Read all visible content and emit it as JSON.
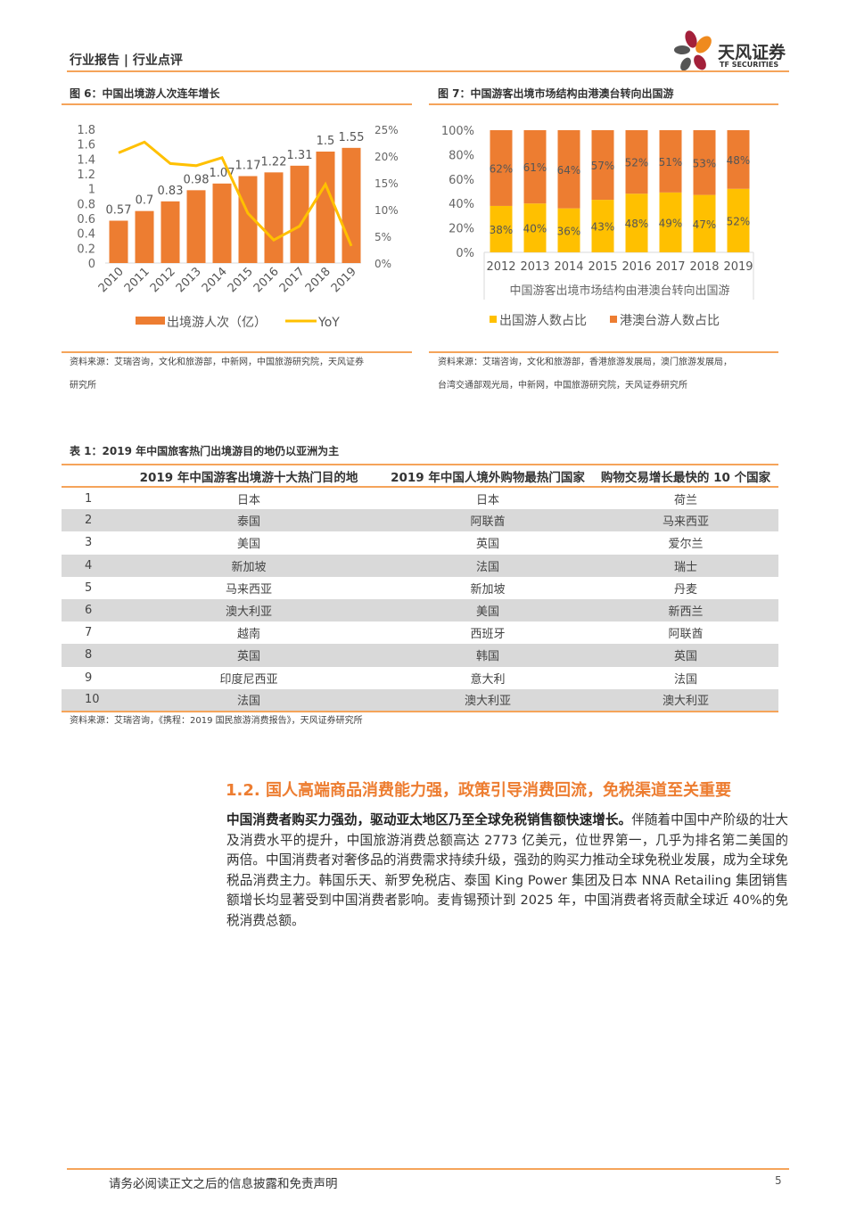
{
  "header": {
    "title": "行业报告 | 行业点评",
    "logo_cn": "天风证券",
    "logo_en": "TF SECURITIES"
  },
  "fig6": {
    "title": "图 6：中国出境游人次连年增长",
    "source": "资料来源：艾瑞咨询，文化和旅游部，中新网，中国旅游研究院，天风证券",
    "source2": "研究所"
  },
  "fig7": {
    "title": "图 7：中国游客出境市场结构由港澳台转向出国游",
    "source": "资料来源：艾瑞咨询，文化和旅游部，香港旅游发展局，澳门旅游发展局，",
    "source2": "台湾交通部观光局，中新网，中国旅游研究院，天风证券研究所"
  },
  "chart_data": [
    {
      "type": "bar+line",
      "categories": [
        "2010",
        "2011",
        "2012",
        "2013",
        "2014",
        "2015",
        "2016",
        "2017",
        "2018",
        "2019"
      ],
      "series": [
        {
          "name": "出境游人次（亿）",
          "type": "bar",
          "axis": "left",
          "color": "#ed7d31",
          "values": [
            0.57,
            0.7,
            0.83,
            0.98,
            1.07,
            1.17,
            1.22,
            1.31,
            1.5,
            1.55
          ]
        },
        {
          "name": "YoY",
          "type": "line",
          "axis": "right",
          "color": "#ffc000",
          "values": [
            20.6,
            22.6,
            18.6,
            18.2,
            19.7,
            9.3,
            4.3,
            6.9,
            14.7,
            3.2
          ]
        }
      ],
      "yticks_left": [
        "0",
        "0.2",
        "0.4",
        "0.6",
        "0.8",
        "1",
        "1.2",
        "1.4",
        "1.6",
        "1.8"
      ],
      "ylim_left": [
        0,
        1.8
      ],
      "yticks_right": [
        "0%",
        "5%",
        "10%",
        "15%",
        "20%",
        "25%"
      ],
      "ylim_right": [
        0,
        25
      ],
      "legend": "bottom",
      "grid": false
    },
    {
      "type": "stacked-bar",
      "categories": [
        "2012",
        "2013",
        "2014",
        "2015",
        "2016",
        "2017",
        "2018",
        "2019"
      ],
      "xlabel": "中国游客出境市场结构由港澳台转向出国游",
      "series": [
        {
          "name": "出国游人数占比",
          "color": "#ffc000",
          "values": [
            38,
            40,
            36,
            43,
            48,
            49,
            47,
            52
          ]
        },
        {
          "name": "港澳台游人数占比",
          "color": "#ed7d31",
          "values": [
            62,
            61,
            64,
            57,
            52,
            51,
            53,
            48
          ]
        }
      ],
      "yticks": [
        "0%",
        "20%",
        "40%",
        "60%",
        "80%",
        "100%"
      ],
      "ylim": [
        0,
        100
      ],
      "legend": "bottom",
      "grid": false
    }
  ],
  "table": {
    "title": "表 1：2019 年中国旅客热门出境游目的地仍以亚洲为主",
    "headers": [
      "",
      "2019 年中国游客出境游十大热门目的地",
      "2019 年中国人境外购物最热门国家",
      "购物交易增长最快的 10 个国家"
    ],
    "rows": [
      [
        "1",
        "日本",
        "日本",
        "荷兰"
      ],
      [
        "2",
        "泰国",
        "阿联酋",
        "马来西亚"
      ],
      [
        "3",
        "美国",
        "英国",
        "爱尔兰"
      ],
      [
        "4",
        "新加坡",
        "法国",
        "瑞士"
      ],
      [
        "5",
        "马来西亚",
        "新加坡",
        "丹麦"
      ],
      [
        "6",
        "澳大利亚",
        "美国",
        "新西兰"
      ],
      [
        "7",
        "越南",
        "西班牙",
        "阿联酋"
      ],
      [
        "8",
        "英国",
        "韩国",
        "英国"
      ],
      [
        "9",
        "印度尼西亚",
        "意大利",
        "法国"
      ],
      [
        "10",
        "法国",
        "澳大利亚",
        "澳大利亚"
      ]
    ],
    "source": "资料来源：艾瑞咨询，《携程：2019 国民旅游消费报告》，天风证券研究所"
  },
  "section": {
    "heading": "1.2. 国人高端商品消费能力强，政策引导消费回流，免税渠道至关重要",
    "lead": "中国消费者购买力强劲，驱动亚太地区乃至全球免税销售额快速增长。",
    "body": "伴随着中国中产阶级的壮大及消费水平的提升，中国旅游消费总额高达 2773 亿美元，位世界第一，几乎为排名第二美国的两倍。中国消费者对奢侈品的消费需求持续升级，强劲的购买力推动全球免税业发展，成为全球免税品消费主力。韩国乐天、新罗免税店、泰国 King Power 集团及日本 NNA Retailing 集团销售额增长均显著受到中国消费者影响。麦肯锡预计到 2025 年，中国消费者将贡献全球近 40%的免税消费总额。"
  },
  "footer": {
    "disclaimer": "请务必阅读正文之后的信息披露和免责声明",
    "page": "5"
  }
}
